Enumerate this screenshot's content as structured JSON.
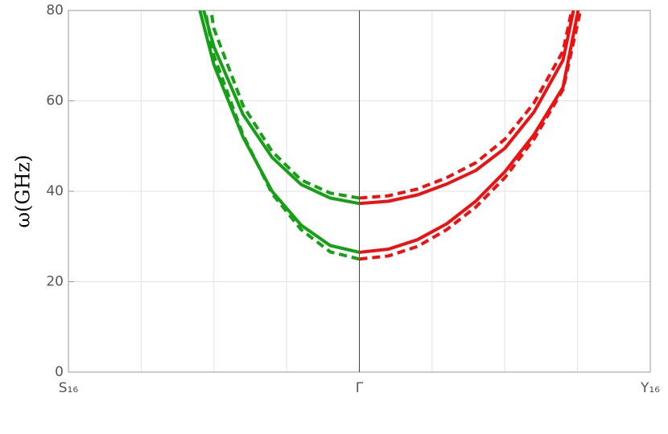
{
  "chart_data": {
    "type": "line",
    "y_label": "ω(GHz)",
    "xlim": [
      -1,
      1
    ],
    "ylim": [
      0,
      80
    ],
    "xticks": [
      {
        "value": -1,
        "label": "S₁₆"
      },
      {
        "value": 0,
        "label": "Γ"
      },
      {
        "value": 1,
        "label": "Y₁₆"
      }
    ],
    "xgrid": [
      -0.75,
      -0.5,
      -0.25,
      0.25,
      0.5,
      0.75
    ],
    "yticks": [
      0,
      20,
      40,
      60,
      80
    ],
    "grid": true,
    "series": [
      {
        "color": "#16a016",
        "dashed": false,
        "x": [
          0,
          -0.1,
          -0.2,
          -0.3,
          -0.4,
          -0.5,
          -0.535
        ],
        "values": [
          37.3,
          38.5,
          41.5,
          47.5,
          57,
          72,
          80
        ]
      },
      {
        "color": "#16a016",
        "dashed": true,
        "x": [
          0,
          -0.1,
          -0.2,
          -0.3,
          -0.4,
          -0.5,
          -0.51
        ],
        "values": [
          38.5,
          39.6,
          42.5,
          48.8,
          59,
          76,
          80
        ]
      },
      {
        "color": "#16a016",
        "dashed": false,
        "x": [
          0,
          -0.1,
          -0.2,
          -0.3,
          -0.4,
          -0.5,
          -0.548
        ],
        "values": [
          26.5,
          28,
          32.5,
          40,
          52,
          68,
          80
        ]
      },
      {
        "color": "#16a016",
        "dashed": true,
        "x": [
          0,
          -0.1,
          -0.2,
          -0.3,
          -0.4,
          -0.5,
          -0.53
        ],
        "values": [
          25,
          26.6,
          31.5,
          39.5,
          52.5,
          70,
          80
        ]
      },
      {
        "color": "#ee1111",
        "dashed": false,
        "x": [
          0,
          0.1,
          0.2,
          0.3,
          0.4,
          0.5,
          0.6,
          0.7,
          0.736
        ],
        "values": [
          37.3,
          37.8,
          39.2,
          41.6,
          44.6,
          49.5,
          57.5,
          69,
          80
        ]
      },
      {
        "color": "#ee1111",
        "dashed": true,
        "x": [
          0,
          0.1,
          0.2,
          0.3,
          0.4,
          0.5,
          0.6,
          0.7,
          0.73
        ],
        "values": [
          38.5,
          39,
          40.5,
          43,
          46.3,
          51.5,
          59.5,
          71,
          80
        ]
      },
      {
        "color": "#ee1111",
        "dashed": false,
        "x": [
          0,
          0.1,
          0.2,
          0.3,
          0.4,
          0.5,
          0.6,
          0.7,
          0.752
        ],
        "values": [
          26.5,
          27.2,
          29.3,
          32.8,
          37.8,
          44.3,
          52.5,
          63,
          80
        ]
      },
      {
        "color": "#ee1111",
        "dashed": true,
        "x": [
          0,
          0.1,
          0.2,
          0.3,
          0.4,
          0.5,
          0.6,
          0.7,
          0.76
        ],
        "values": [
          25,
          25.7,
          27.8,
          31.5,
          36.5,
          43,
          51.5,
          62.5,
          80
        ]
      }
    ]
  }
}
